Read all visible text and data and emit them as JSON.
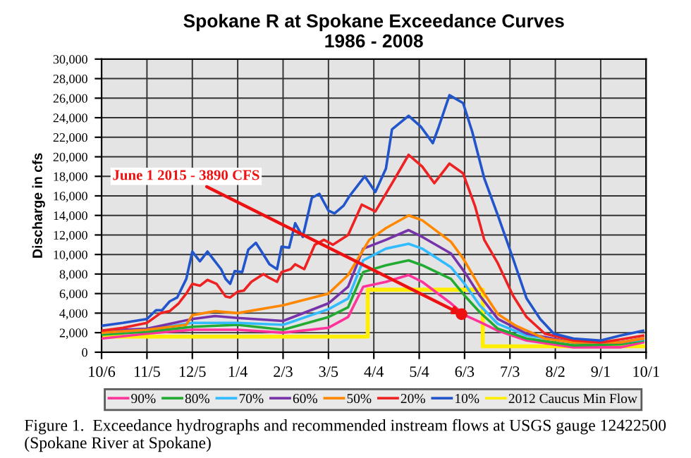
{
  "chart_data": {
    "type": "line",
    "title": "Spokane R at Spokane Exceedance Curves\n1986 - 2008",
    "ylabel": "Discharge in cfs",
    "xlim": [
      "1986-10-06",
      "1987-10-01"
    ],
    "ylim": [
      0,
      30000
    ],
    "xticks": [
      {
        "value": "1986-10-06",
        "label": "10/6"
      },
      {
        "value": "1986-11-05",
        "label": "11/5"
      },
      {
        "value": "1986-12-05",
        "label": "12/5"
      },
      {
        "value": "1987-01-04",
        "label": "1/4"
      },
      {
        "value": "1987-02-03",
        "label": "2/3"
      },
      {
        "value": "1987-03-05",
        "label": "3/5"
      },
      {
        "value": "1987-04-04",
        "label": "4/4"
      },
      {
        "value": "1987-05-04",
        "label": "5/4"
      },
      {
        "value": "1987-06-03",
        "label": "6/3"
      },
      {
        "value": "1987-07-03",
        "label": "7/3"
      },
      {
        "value": "1987-08-02",
        "label": "8/2"
      },
      {
        "value": "1987-09-01",
        "label": "9/1"
      },
      {
        "value": "1987-10-01",
        "label": "10/1"
      }
    ],
    "yticks": [
      0,
      {
        "value": 2000,
        "label": "2,000"
      },
      {
        "value": 4000,
        "label": "4,000"
      },
      {
        "value": 6000,
        "label": "6,000"
      },
      {
        "value": 8000,
        "label": "8,000"
      },
      {
        "value": 10000,
        "label": "10,000"
      },
      {
        "value": 12000,
        "label": "12,000"
      },
      {
        "value": 14000,
        "label": "14,000"
      },
      {
        "value": 16000,
        "label": "16,000"
      },
      {
        "value": 18000,
        "label": "18,000"
      },
      {
        "value": 20000,
        "label": "20,000"
      },
      {
        "value": 22000,
        "label": "22,000"
      },
      {
        "value": 24000,
        "label": "24,000"
      },
      {
        "value": 26000,
        "label": "26,000"
      },
      {
        "value": 28000,
        "label": "28,000"
      },
      {
        "value": 30000,
        "label": "30,000"
      }
    ],
    "grid": true,
    "legend": "bottom",
    "marker": "none",
    "line_style": "solid",
    "series": [
      {
        "name": "90%",
        "color": "#ff3399",
        "x": [
          "1986-10-06",
          "1986-11-05",
          "1986-12-05",
          "1987-01-04",
          "1987-02-03",
          "1987-03-05",
          "1987-03-18",
          "1987-03-28",
          "1987-04-12",
          "1987-04-27",
          "1987-05-06",
          "1987-05-25",
          "1987-06-03",
          "1987-06-13",
          "1987-06-25",
          "1987-07-14",
          "1987-08-14",
          "1987-09-14",
          "1987-09-29"
        ],
        "values": [
          1400,
          1900,
          2300,
          2300,
          2000,
          2500,
          3600,
          6700,
          7200,
          7900,
          7200,
          5000,
          3800,
          3100,
          2200,
          1200,
          500,
          500,
          1000
        ]
      },
      {
        "name": "80%",
        "color": "#22aa33",
        "x": [
          "1986-10-06",
          "1986-11-05",
          "1986-12-05",
          "1987-01-04",
          "1987-02-03",
          "1987-03-05",
          "1987-03-18",
          "1987-03-28",
          "1987-04-12",
          "1987-04-27",
          "1987-05-06",
          "1987-05-25",
          "1987-06-03",
          "1987-06-13",
          "1987-06-25",
          "1987-07-14",
          "1987-08-14",
          "1987-09-14",
          "1987-09-29"
        ],
        "values": [
          1800,
          2100,
          2600,
          2800,
          2300,
          3600,
          4600,
          8200,
          8900,
          9400,
          8900,
          7500,
          5800,
          4100,
          2400,
          1400,
          700,
          800,
          1200
        ]
      },
      {
        "name": "70%",
        "color": "#33bbff",
        "x": [
          "1986-10-06",
          "1986-11-05",
          "1986-12-05",
          "1987-01-04",
          "1987-02-03",
          "1987-03-05",
          "1987-03-18",
          "1987-03-28",
          "1987-04-12",
          "1987-04-27",
          "1987-05-06",
          "1987-05-25",
          "1987-06-03",
          "1987-06-13",
          "1987-06-25",
          "1987-07-14",
          "1987-08-14",
          "1987-09-14",
          "1987-09-29"
        ],
        "values": [
          2000,
          2300,
          3000,
          3000,
          2800,
          4400,
          5500,
          9400,
          10600,
          11100,
          10600,
          8700,
          7000,
          4800,
          2900,
          1700,
          1000,
          1000,
          1300
        ]
      },
      {
        "name": "60%",
        "color": "#7733aa",
        "x": [
          "1986-10-06",
          "1986-11-05",
          "1986-12-05",
          "1986-12-20",
          "1987-01-04",
          "1987-02-03",
          "1987-03-05",
          "1987-03-18",
          "1987-03-28",
          "1987-04-12",
          "1987-04-27",
          "1987-05-06",
          "1987-05-25",
          "1987-06-03",
          "1987-06-13",
          "1987-06-25",
          "1987-07-14",
          "1987-08-14",
          "1987-09-14",
          "1987-09-29"
        ],
        "values": [
          2200,
          2400,
          3400,
          3700,
          3500,
          3200,
          5000,
          6700,
          10600,
          11500,
          12500,
          11800,
          10100,
          8200,
          5800,
          3400,
          1900,
          1000,
          1000,
          1400
        ]
      },
      {
        "name": "50%",
        "color": "#ff8800",
        "x": [
          "1986-10-06",
          "1986-11-05",
          "1986-12-01",
          "1986-12-05",
          "1986-12-20",
          "1987-01-04",
          "1987-02-03",
          "1987-03-05",
          "1987-03-18",
          "1987-04-01",
          "1987-04-12",
          "1987-04-27",
          "1987-05-06",
          "1987-05-25",
          "1987-06-02",
          "1987-06-13",
          "1987-06-25",
          "1987-07-07",
          "1987-07-26",
          "1987-08-14",
          "1987-09-14",
          "1987-09-29"
        ],
        "values": [
          2000,
          2300,
          2800,
          3800,
          4200,
          4000,
          4800,
          6000,
          7900,
          11500,
          12700,
          14000,
          13500,
          11300,
          9600,
          6700,
          3900,
          2700,
          1400,
          1000,
          1000,
          1400
        ]
      },
      {
        "name": "20%",
        "color": "#ee2222",
        "x": [
          "1986-10-06",
          "1986-10-20",
          "1986-11-05",
          "1986-11-14",
          "1986-11-20",
          "1986-11-26",
          "1986-12-01",
          "1986-12-05",
          "1986-12-10",
          "1986-12-15",
          "1986-12-21",
          "1986-12-27",
          "1986-12-30",
          "1987-01-04",
          "1987-01-08",
          "1987-01-13",
          "1987-01-21",
          "1987-01-25",
          "1987-01-30",
          "1987-02-02",
          "1987-02-08",
          "1987-02-11",
          "1987-02-17",
          "1987-02-24",
          "1987-03-02",
          "1987-03-08",
          "1987-03-18",
          "1987-03-27",
          "1987-04-05",
          "1987-04-18",
          "1987-04-27",
          "1987-05-06",
          "1987-05-14",
          "1987-05-24",
          "1987-06-02",
          "1987-06-10",
          "1987-06-16",
          "1987-06-25",
          "1987-07-05",
          "1987-07-14",
          "1987-07-26",
          "1987-08-14",
          "1987-09-01",
          "1987-09-14",
          "1987-09-29"
        ],
        "values": [
          2200,
          2500,
          3000,
          4000,
          4200,
          5000,
          6000,
          7000,
          6800,
          7400,
          7000,
          5700,
          5600,
          6200,
          6300,
          7200,
          8000,
          7600,
          7200,
          8200,
          8500,
          9000,
          8500,
          11000,
          11500,
          11000,
          12000,
          15100,
          14400,
          17800,
          20200,
          19000,
          17300,
          19300,
          18300,
          14900,
          11500,
          9100,
          5800,
          3600,
          1900,
          1200,
          1000,
          1300,
          1700
        ]
      },
      {
        "name": "10%",
        "color": "#2255cc",
        "x": [
          "1986-10-06",
          "1986-10-20",
          "1986-11-05",
          "1986-11-11",
          "1986-11-15",
          "1986-11-20",
          "1986-11-25",
          "1986-12-01",
          "1986-12-05",
          "1986-12-10",
          "1986-12-15",
          "1986-12-19",
          "1986-12-24",
          "1986-12-27",
          "1986-12-30",
          "1987-01-02",
          "1987-01-07",
          "1987-01-11",
          "1987-01-16",
          "1987-01-21",
          "1987-01-25",
          "1987-01-30",
          "1987-02-02",
          "1987-02-07",
          "1987-02-11",
          "1987-02-16",
          "1987-02-22",
          "1987-02-27",
          "1987-03-05",
          "1987-03-09",
          "1987-03-15",
          "1987-03-19",
          "1987-03-29",
          "1987-04-05",
          "1987-04-12",
          "1987-04-16",
          "1987-04-27",
          "1987-05-05",
          "1987-05-13",
          "1987-05-17",
          "1987-05-24",
          "1987-06-02",
          "1987-06-08",
          "1987-06-16",
          "1987-06-25",
          "1987-07-05",
          "1987-07-14",
          "1987-07-23",
          "1987-08-01",
          "1987-08-14",
          "1987-09-01",
          "1987-09-14",
          "1987-09-29"
        ],
        "values": [
          2700,
          3000,
          3400,
          4300,
          4300,
          5200,
          5600,
          7500,
          10300,
          9300,
          10300,
          9500,
          8500,
          7500,
          7000,
          8300,
          8200,
          10500,
          11200,
          10000,
          9000,
          8500,
          10800,
          10700,
          13200,
          11800,
          15800,
          16200,
          14500,
          14200,
          15000,
          16000,
          18000,
          16400,
          18800,
          22800,
          24200,
          23100,
          21400,
          23100,
          26300,
          25500,
          22600,
          17800,
          14000,
          9600,
          5500,
          3400,
          1900,
          1400,
          1200,
          1700,
          2200
        ]
      },
      {
        "name": "2012 Caucus Min Flow",
        "color": "#ffee00",
        "type": "step",
        "x": [
          "1986-10-06",
          "1987-03-31",
          "1987-06-15",
          "1987-10-01"
        ],
        "values": [
          1600,
          6400,
          600,
          600
        ]
      }
    ],
    "annotations": [
      {
        "text": "June 1 2015 - 3890 CFS",
        "x": "1987-06-01",
        "y": 3890
      },
      "Figure 1.  Exceedance hydrographs and recommended instream flows at USGS gauge 12422500 (Spokane River at Spokane)"
    ]
  }
}
